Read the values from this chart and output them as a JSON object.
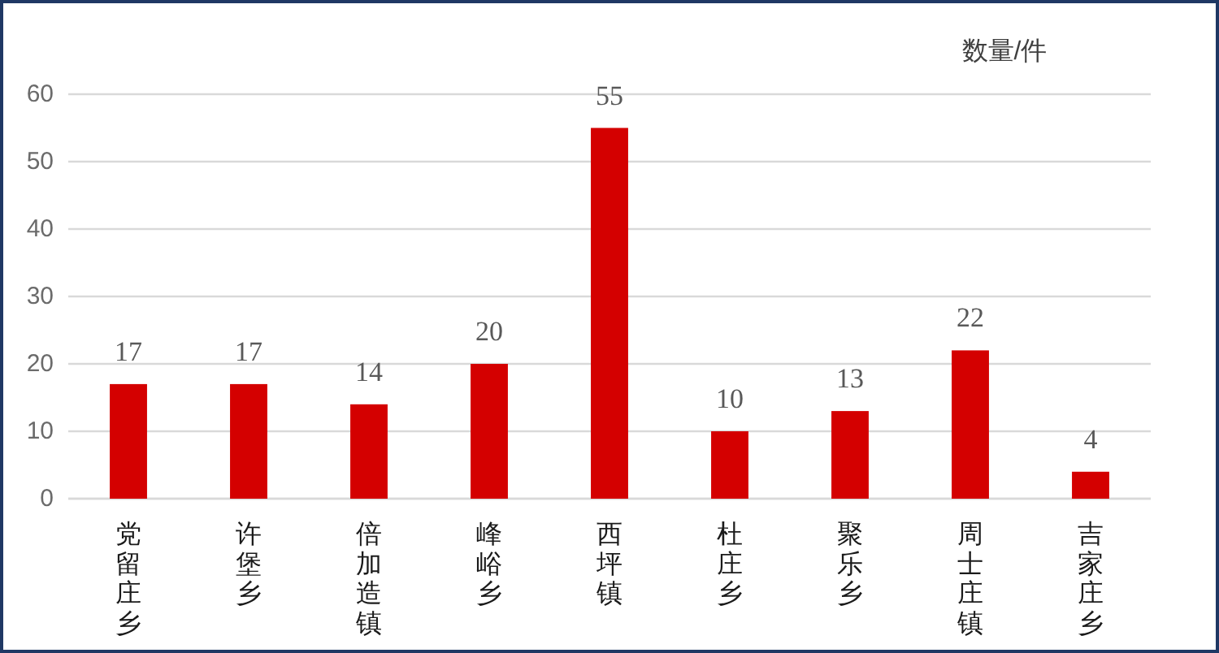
{
  "chart_data": {
    "type": "bar",
    "ylabel": "数量/件",
    "categories": [
      "党留庄乡",
      "许堡乡",
      "倍加造镇",
      "峰峪乡",
      "西坪镇",
      "杜庄乡",
      "聚乐乡",
      "周士庄镇",
      "吉家庄乡"
    ],
    "values": [
      17,
      17,
      14,
      20,
      55,
      10,
      13,
      22,
      4
    ],
    "color": "#d40000",
    "ylim": [
      0,
      60
    ],
    "yticks": [
      0,
      10,
      20,
      30,
      40,
      50,
      60
    ],
    "grid": "y",
    "data_labels": true
  }
}
